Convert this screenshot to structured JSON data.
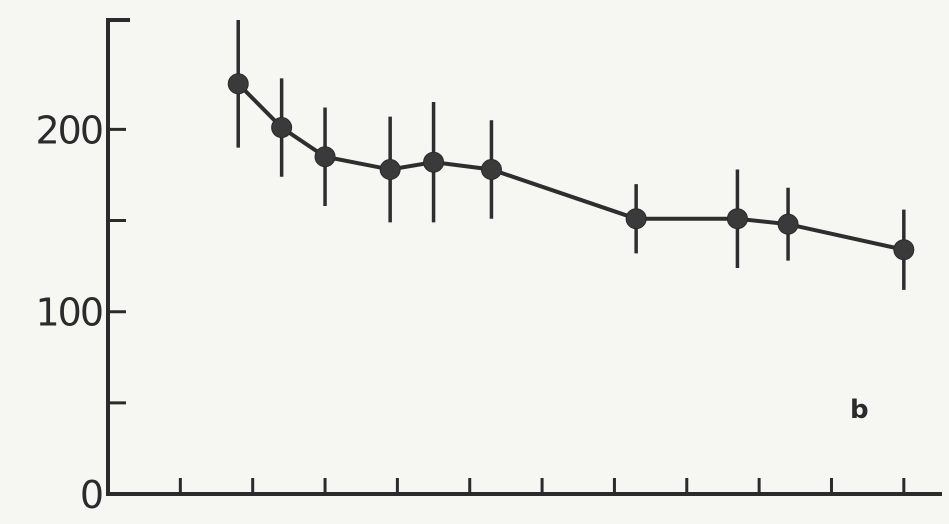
{
  "chart_data": {
    "type": "line",
    "title": "",
    "xlabel": "",
    "ylabel": "",
    "panel_label": "b",
    "ylim": [
      0,
      260
    ],
    "xlim": [
      0,
      11.5
    ],
    "y_ticks_major": [
      0,
      100,
      200
    ],
    "y_ticks_minor": [
      50,
      150
    ],
    "y_tick_labels": [
      "0",
      "100",
      "200"
    ],
    "x_ticks": [
      1,
      2,
      3,
      4,
      5,
      6,
      7,
      8,
      9,
      10,
      11
    ],
    "grid": false,
    "series": [
      {
        "x": [
          1.8,
          2.4,
          3.0,
          3.9,
          4.5,
          5.3,
          7.3,
          8.7,
          9.4,
          11.0
        ],
        "values": [
          225,
          201,
          185,
          178,
          182,
          178,
          151,
          151,
          148,
          134
        ],
        "error": [
          35,
          27,
          27,
          29,
          33,
          27,
          19,
          27,
          20,
          22
        ]
      }
    ],
    "colors": {
      "line": "#2e2e2e",
      "marker": "#3a3a3a",
      "axis": "#2b2b2b",
      "background": "#f6f6f3"
    }
  }
}
